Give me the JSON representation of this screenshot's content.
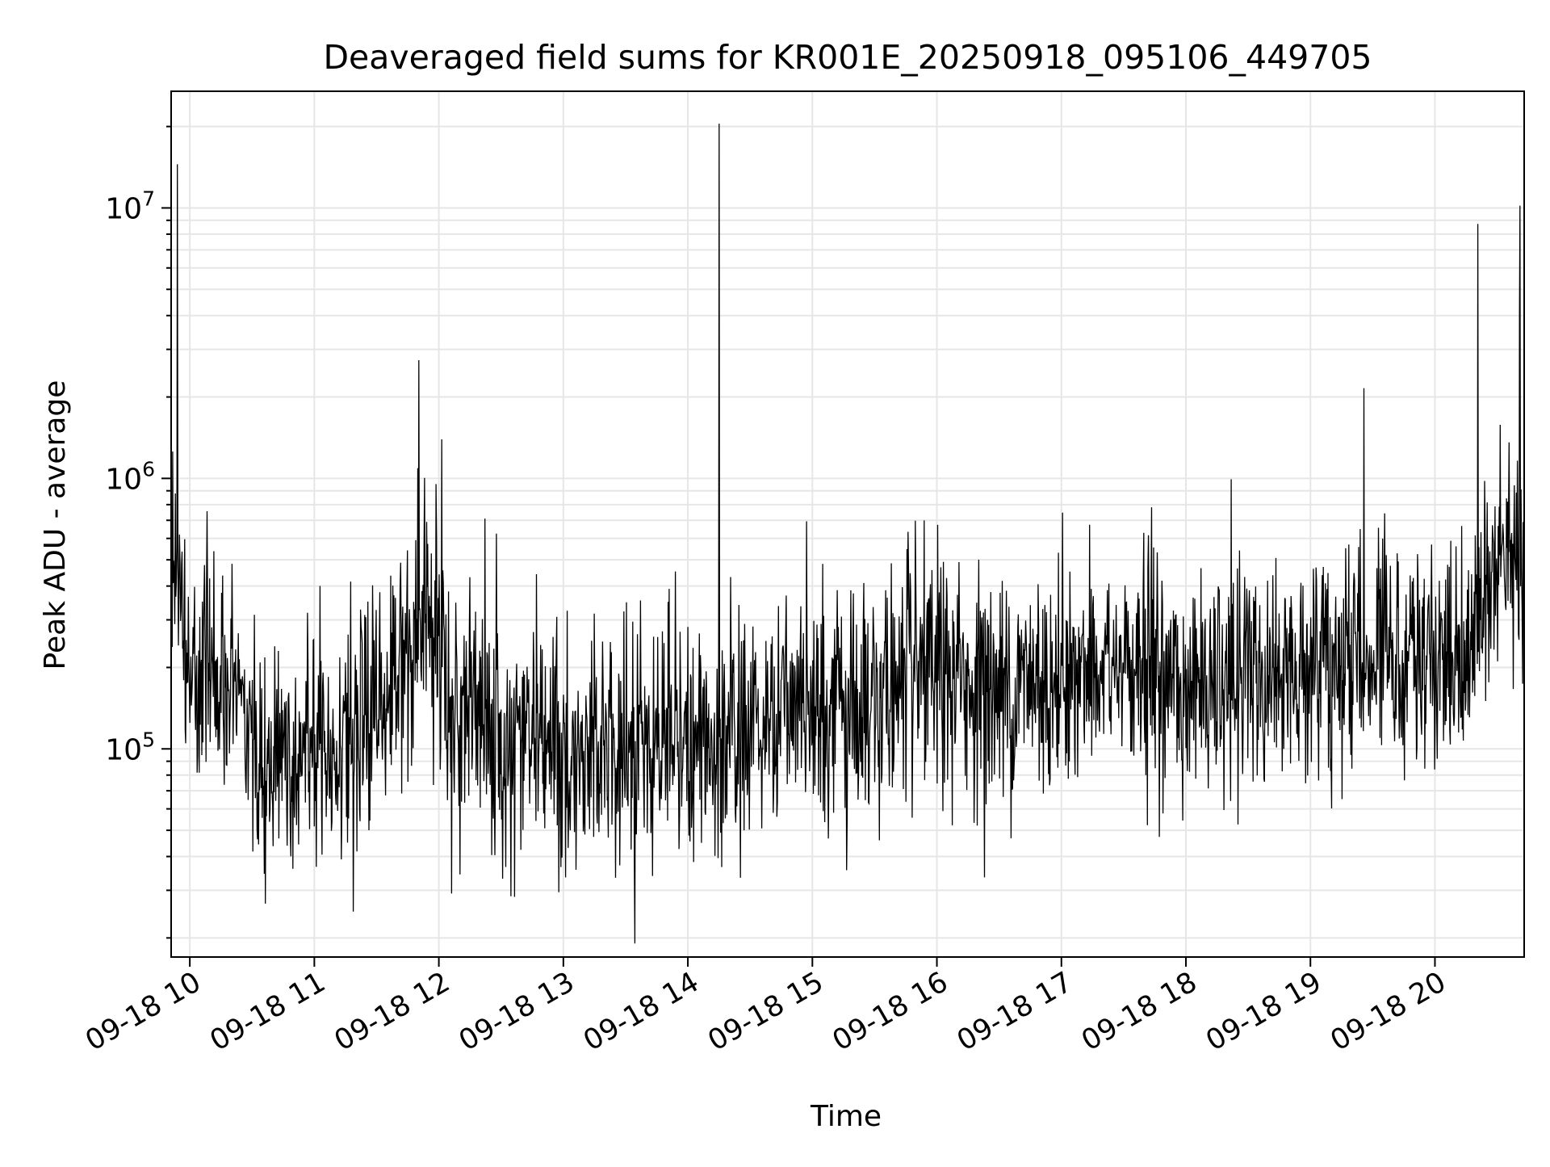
{
  "chart_data": {
    "type": "line",
    "title": "Deaveraged field sums for KR001E_20250918_095106_449705",
    "xlabel": "Time",
    "ylabel": "Peak ADU - average",
    "x_axis": {
      "kind": "datetime",
      "range": [
        "2025-09-18 09:51",
        "2025-09-18 20:43"
      ],
      "tick_labels": [
        "09-18 10",
        "09-18 11",
        "09-18 12",
        "09-18 13",
        "09-18 14",
        "09-18 15",
        "09-18 16",
        "09-18 17",
        "09-18 18",
        "09-18 19",
        "09-18 20"
      ]
    },
    "y_axis": {
      "scale": "log",
      "range": [
        17000,
        27000000
      ],
      "tick_labels": [
        {
          "base": "10",
          "exp": "5"
        },
        {
          "base": "10",
          "exp": "6"
        },
        {
          "base": "10",
          "exp": "7"
        }
      ]
    },
    "grid": true,
    "line_color": "#000000",
    "series": [
      {
        "x": [
          "2025-09-18 09:51",
          "2025-09-18 10:00",
          "2025-09-18 10:30",
          "2025-09-18 10:40",
          "2025-09-18 11:00",
          "2025-09-18 11:30",
          "2025-09-18 11:55",
          "2025-09-18 12:05",
          "2025-09-18 12:30",
          "2025-09-18 13:00",
          "2025-09-18 13:30",
          "2025-09-18 13:50",
          "2025-09-18 14:15",
          "2025-09-18 14:40",
          "2025-09-18 15:00",
          "2025-09-18 15:30",
          "2025-09-18 16:00",
          "2025-09-18 16:30",
          "2025-09-18 17:00",
          "2025-09-18 17:30",
          "2025-09-18 18:00",
          "2025-09-18 18:30",
          "2025-09-18 19:00",
          "2025-09-18 19:30",
          "2025-09-18 20:00",
          "2025-09-18 20:15",
          "2025-09-18 20:25",
          "2025-09-18 20:43"
        ],
        "y": [
          550000,
          230000,
          130000,
          90000,
          110000,
          130000,
          350000,
          160000,
          110000,
          100000,
          100000,
          120000,
          100000,
          140000,
          140000,
          150000,
          190000,
          160000,
          190000,
          200000,
          170000,
          180000,
          200000,
          230000,
          220000,
          200000,
          470000,
          550000
        ]
      }
    ],
    "annotations": [
      {
        "x": "2025-09-18 09:54",
        "y": 14500000
      },
      {
        "x": "2025-09-18 14:15",
        "y": 20500000
      },
      {
        "x": "2025-09-18 20:41",
        "y": 10200000
      }
    ]
  }
}
